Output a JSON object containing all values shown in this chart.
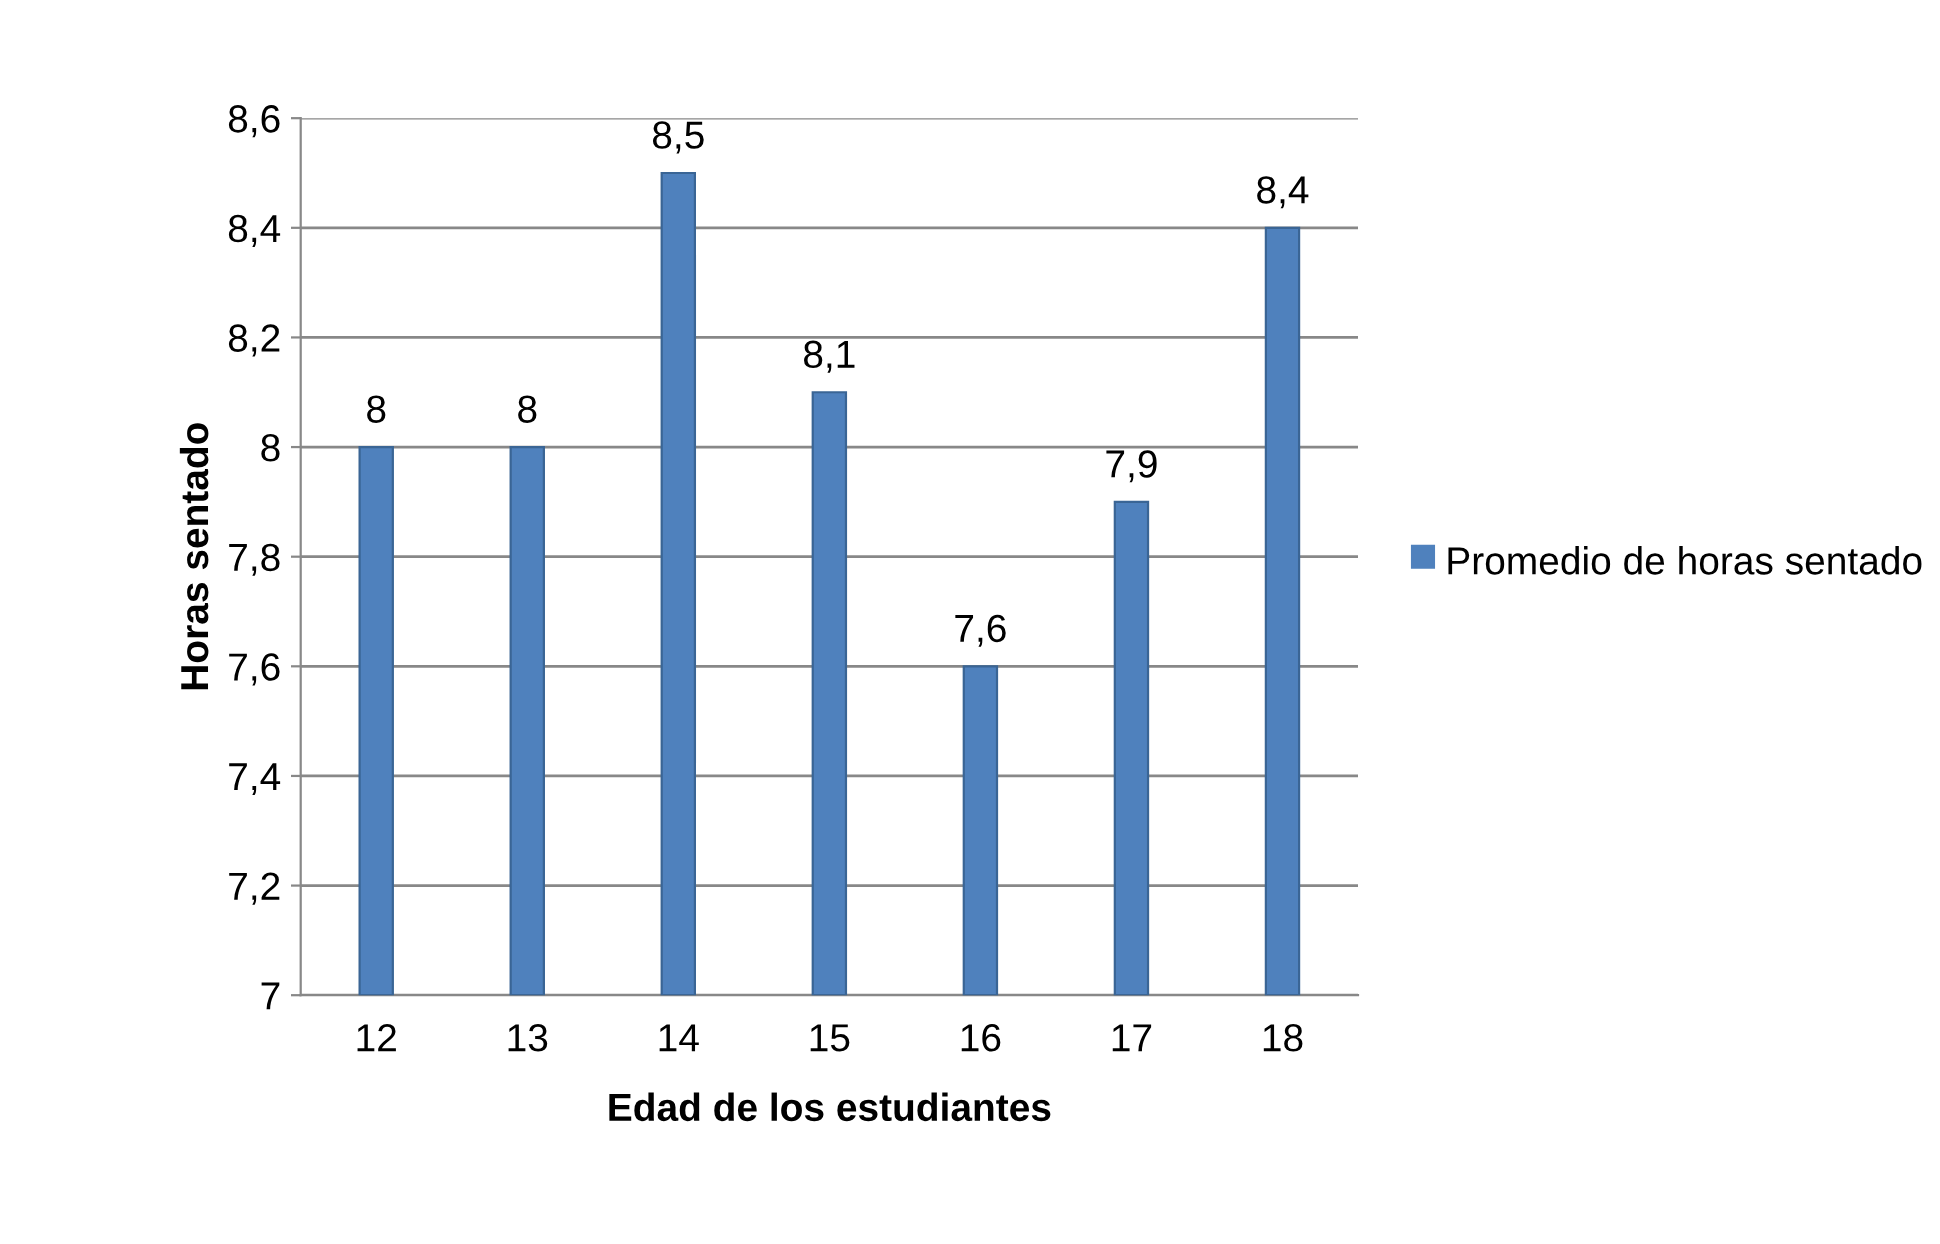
{
  "chart_data": {
    "type": "bar",
    "xlabel": "Edad de los estudiantes",
    "ylabel": "Horas sentado",
    "categories": [
      "12",
      "13",
      "14",
      "15",
      "16",
      "17",
      "18"
    ],
    "series": [
      {
        "name": "Promedio de horas sentado",
        "color": "#4f81bd",
        "values": [
          8,
          8,
          8.5,
          8.1,
          7.6,
          7.9,
          8.4
        ],
        "value_labels": [
          "8",
          "8",
          "8,5",
          "8,1",
          "7,6",
          "7,9",
          "8,4"
        ]
      }
    ],
    "ylim": [
      7,
      8.6
    ],
    "yticks": [
      7,
      {
        "value": 7.2,
        "label": "7,2"
      },
      {
        "value": 7.4,
        "label": "7,4"
      },
      {
        "value": 7.6,
        "label": "7,6"
      },
      {
        "value": 7.8,
        "label": "7,8"
      },
      8,
      {
        "value": 8.2,
        "label": "8,2"
      },
      {
        "value": 8.4,
        "label": "8,4"
      },
      {
        "value": 8.6,
        "label": "8,6"
      }
    ],
    "grid": "y",
    "legend": "right"
  }
}
